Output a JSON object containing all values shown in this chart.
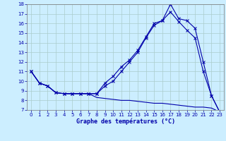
{
  "xlabel": "Graphe des températures (°C)",
  "background_color": "#cceeff",
  "grid_color": "#aacccc",
  "line_color": "#0000aa",
  "xlim": [
    -0.5,
    23.5
  ],
  "ylim": [
    7,
    18
  ],
  "yticks": [
    7,
    8,
    9,
    10,
    11,
    12,
    13,
    14,
    15,
    16,
    17,
    18
  ],
  "xticks": [
    0,
    1,
    2,
    3,
    4,
    5,
    6,
    7,
    8,
    9,
    10,
    11,
    12,
    13,
    14,
    15,
    16,
    17,
    18,
    19,
    20,
    21,
    22,
    23
  ],
  "line1_x": [
    0,
    1,
    2,
    3,
    4,
    5,
    6,
    7,
    8,
    9,
    10,
    11,
    12,
    13,
    14,
    15,
    16,
    17,
    18,
    19,
    20,
    21,
    22,
    23
  ],
  "line1_y": [
    11.0,
    9.8,
    9.5,
    8.8,
    8.7,
    8.7,
    8.7,
    8.7,
    8.7,
    9.5,
    10.0,
    11.0,
    12.0,
    13.0,
    14.5,
    15.8,
    16.3,
    18.0,
    16.5,
    16.3,
    15.5,
    12.0,
    8.5,
    6.8
  ],
  "line2_x": [
    0,
    1,
    2,
    3,
    4,
    5,
    6,
    7,
    8,
    9,
    10,
    11,
    12,
    13,
    14,
    15,
    16,
    17,
    18,
    19,
    20,
    21,
    22,
    23
  ],
  "line2_y": [
    11.0,
    9.8,
    9.5,
    8.8,
    8.7,
    8.7,
    8.7,
    8.7,
    8.7,
    9.8,
    10.5,
    11.5,
    12.2,
    13.2,
    14.6,
    16.0,
    16.3,
    17.2,
    16.2,
    15.3,
    14.5,
    11.0,
    8.5,
    6.8
  ],
  "line3_x": [
    0,
    1,
    2,
    3,
    4,
    5,
    6,
    7,
    8,
    9,
    10,
    11,
    12,
    13,
    14,
    15,
    16,
    17,
    18,
    19,
    20,
    21,
    22,
    23
  ],
  "line3_y": [
    11.0,
    9.8,
    9.5,
    8.8,
    8.7,
    8.7,
    8.7,
    8.7,
    8.3,
    8.2,
    8.1,
    8.0,
    8.0,
    7.9,
    7.8,
    7.7,
    7.7,
    7.6,
    7.5,
    7.4,
    7.3,
    7.3,
    7.2,
    6.8
  ],
  "tick_fontsize": 5,
  "xlabel_fontsize": 6
}
